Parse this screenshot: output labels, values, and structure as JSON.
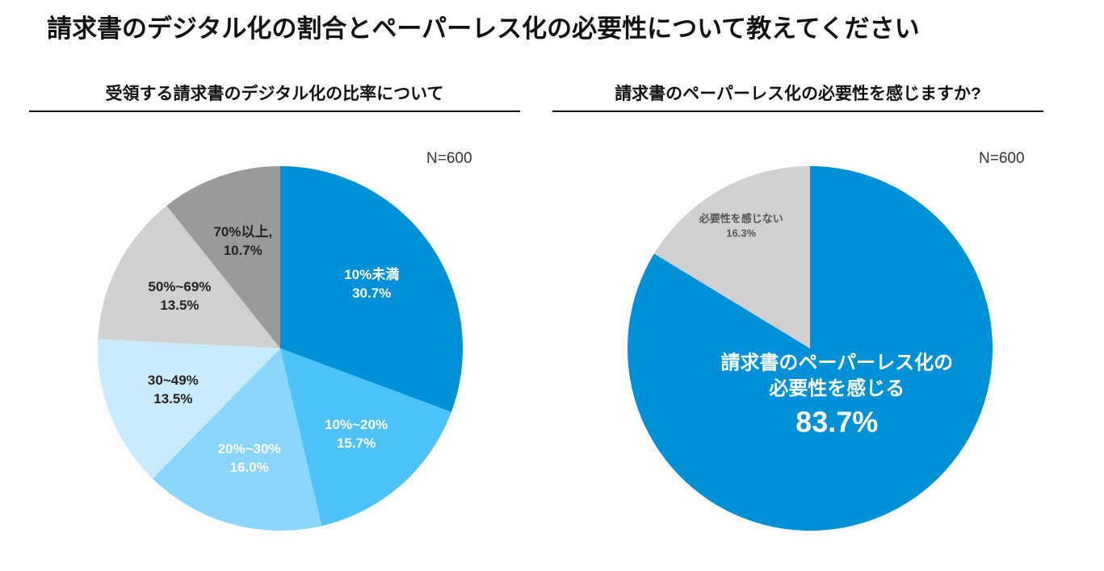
{
  "title": "請求書のデジタル化の割合とペーパーレス化の必要性について教えてください",
  "chart_data": [
    {
      "type": "pie",
      "title": "受領する請求書のデジタル化の比率について",
      "note": "N=600",
      "categories": [
        "10%未満",
        "10%~20%",
        "20%~30%",
        "30~49%",
        "50%~69%",
        "70%以上,"
      ],
      "values": [
        30.7,
        15.7,
        16.0,
        13.5,
        13.5,
        10.7
      ],
      "value_labels": [
        "30.7%",
        "15.7%",
        "16.0%",
        "13.5%",
        "13.5%",
        "10.7%"
      ],
      "colors": [
        "#0090d8",
        "#4ec3f9",
        "#8ad6fc",
        "#c8ecfd",
        "#d0d0d0",
        "#9a9a9a"
      ]
    },
    {
      "type": "pie",
      "title": "請求書のペーパーレス化の必要性を感じますか?",
      "note": "N=600",
      "categories": [
        "請求書のペーパーレス化の必要性を感じる",
        "必要性を感じない"
      ],
      "values": [
        83.7,
        16.3
      ],
      "value_labels": [
        "83.7%",
        "16.3%"
      ],
      "colors": [
        "#0090d8",
        "#d0d0d0"
      ]
    }
  ]
}
